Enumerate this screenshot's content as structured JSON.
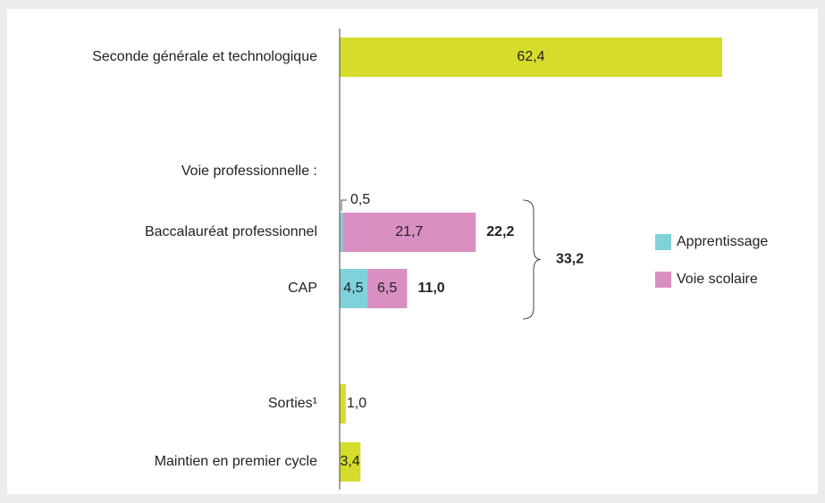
{
  "chart_data": {
    "type": "bar",
    "categories": [
      "Seconde générale et technologique",
      "Voie professionnelle :",
      "Baccalauréat professionnel",
      "CAP",
      "Sorties¹",
      "Maintien en premier cycle"
    ],
    "values": [
      62.4,
      null,
      null,
      null,
      1.0,
      3.4
    ],
    "value_labels": [
      "62,4",
      null,
      null,
      null,
      "1,0",
      "3,4"
    ],
    "color": "#d5dc2b",
    "series": [
      {
        "name": "Apprentissage",
        "color": "#7fd2da",
        "values": [
          null,
          null,
          0.5,
          4.5,
          null,
          null
        ],
        "value_labels": [
          null,
          null,
          "0,5",
          "4,5",
          null,
          null
        ]
      },
      {
        "name": "Voie scolaire",
        "color": "#d98fc2",
        "values": [
          null,
          null,
          21.7,
          6.5,
          null,
          null
        ],
        "value_labels": [
          null,
          null,
          "21,7",
          "6,5",
          null,
          null
        ]
      }
    ],
    "totals": [
      null,
      null,
      22.2,
      11.0,
      null,
      null
    ],
    "total_labels": [
      null,
      null,
      "22,2",
      "11,0",
      null,
      null
    ],
    "group_total": 33.2,
    "group_total_label": "33,2",
    "xlim": [
      0,
      78
    ]
  }
}
